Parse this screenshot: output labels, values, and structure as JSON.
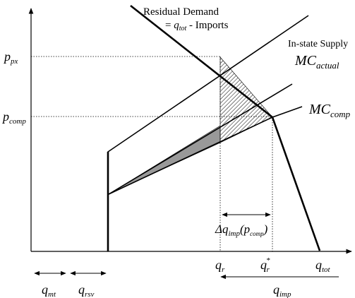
{
  "labels": {
    "residual_demand_line1": "Residual Demand",
    "residual_demand_line2_eq": "= ",
    "residual_demand_q": "q",
    "residual_demand_q_sub": "tot",
    "residual_demand_line2_rest": " - Imports",
    "instate_supply": "In-state Supply",
    "mc_actual": "MC",
    "mc_actual_sub": "actual",
    "mc_comp": "MC",
    "mc_comp_sub": "comp",
    "p_px": "p",
    "p_px_sub": "px",
    "p_comp": "p",
    "p_comp_sub": "comp",
    "delta_prefix": "Δq",
    "delta_sub": "imp",
    "delta_open": "(p",
    "delta_inner_sub": "comp",
    "delta_close": ")",
    "q_r": "q",
    "q_r_sub": "r",
    "q_r_star": "q",
    "q_r_star_sub": "r",
    "q_r_star_sup": "*",
    "q_tot": "q",
    "q_tot_sub": "tot",
    "q_mt": "q",
    "q_mt_sub": "mt",
    "q_rsv": "q",
    "q_rsv_sub": "rsv",
    "q_imp": "q",
    "q_imp_sub": "imp"
  },
  "colors": {
    "ink": "#000000",
    "shaded_triangle": "#999999",
    "hatch": "#000000"
  }
}
